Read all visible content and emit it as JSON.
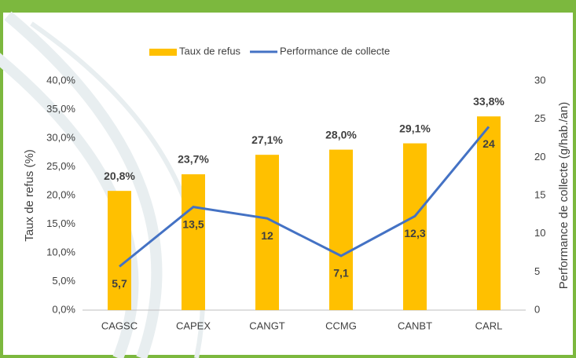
{
  "chart_data": {
    "type": "bar_line",
    "categories": [
      "CAGSC",
      "CAPEX",
      "CANGT",
      "CCMG",
      "CANBT",
      "CARL"
    ],
    "series": [
      {
        "name": "Taux de refus",
        "type": "bar",
        "color": "#ffc000",
        "values": [
          20.8,
          23.7,
          27.1,
          28.0,
          29.1,
          33.8
        ],
        "value_labels": [
          "20,8%",
          "23,7%",
          "27,1%",
          "28,0%",
          "29,1%",
          "33,8%"
        ]
      },
      {
        "name": "Performance de collecte",
        "type": "line",
        "axis": "y2",
        "color": "#4472c4",
        "values": [
          5.7,
          13.5,
          12,
          7.1,
          12.3,
          24
        ],
        "value_labels": [
          "5,7",
          "13,5",
          "12",
          "7,1",
          "12,3",
          "24"
        ]
      }
    ],
    "y_label": "Taux de refus (%)",
    "y2_label": "Performance de collecte (g/hab./an)",
    "ylim": [
      0,
      40
    ],
    "yticks": [
      {
        "value": 0,
        "label": "0,0%"
      },
      {
        "value": 5,
        "label": "5,0%"
      },
      {
        "value": 10,
        "label": "10,0%"
      },
      {
        "value": 15,
        "label": "15,0%"
      },
      {
        "value": 20,
        "label": "20,0%"
      },
      {
        "value": 25,
        "label": "25,0%"
      },
      {
        "value": 30,
        "label": "30,0%"
      },
      {
        "value": 35,
        "label": "35,0%"
      },
      {
        "value": 40,
        "label": "40,0%"
      }
    ],
    "y2lim": [
      0,
      30
    ],
    "y2ticks": [
      0,
      5,
      10,
      15,
      20,
      25,
      30
    ],
    "legend": "top"
  }
}
